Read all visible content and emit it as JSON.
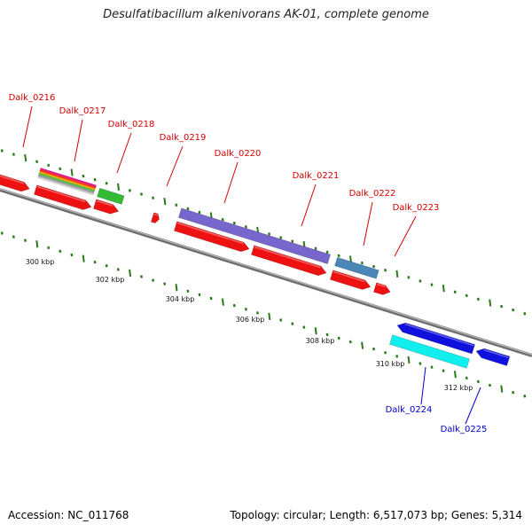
{
  "title": "Desulfatibacillum alkenivorans AK-01, complete genome",
  "footer": {
    "accession": "Accession: NC_011768",
    "summary": "Topology: circular; Length: 6,517,073 bp; Genes: 5,314"
  },
  "scale_labels": [
    "300 kbp",
    "302 kbp",
    "304 kbp",
    "306 kbp",
    "308 kbp",
    "310 kbp",
    "312 kbp"
  ],
  "genes": [
    {
      "locus": "Dalk_0216",
      "color": "#d40000"
    },
    {
      "locus": "Dalk_0217",
      "color": "#d40000"
    },
    {
      "locus": "Dalk_0218",
      "color": "#d40000"
    },
    {
      "locus": "Dalk_0219",
      "color": "#d40000"
    },
    {
      "locus": "Dalk_0220",
      "color": "#d40000"
    },
    {
      "locus": "Dalk_0221",
      "color": "#d40000"
    },
    {
      "locus": "Dalk_0222",
      "color": "#d40000"
    },
    {
      "locus": "Dalk_0223",
      "color": "#d40000"
    },
    {
      "locus": "Dalk_0224",
      "color": "#0000c8"
    },
    {
      "locus": "Dalk_0225",
      "color": "#0000c8"
    }
  ],
  "colors": {
    "cds": "#ee1111",
    "cog_purple": "#7766cc",
    "cog_steel": "#4a86b8",
    "cog_green": "#33bb33",
    "cog_blue": "#1111dd",
    "cog_cyan": "#11eeee",
    "backbone": "#888888",
    "tick": "#2a7a1a"
  }
}
